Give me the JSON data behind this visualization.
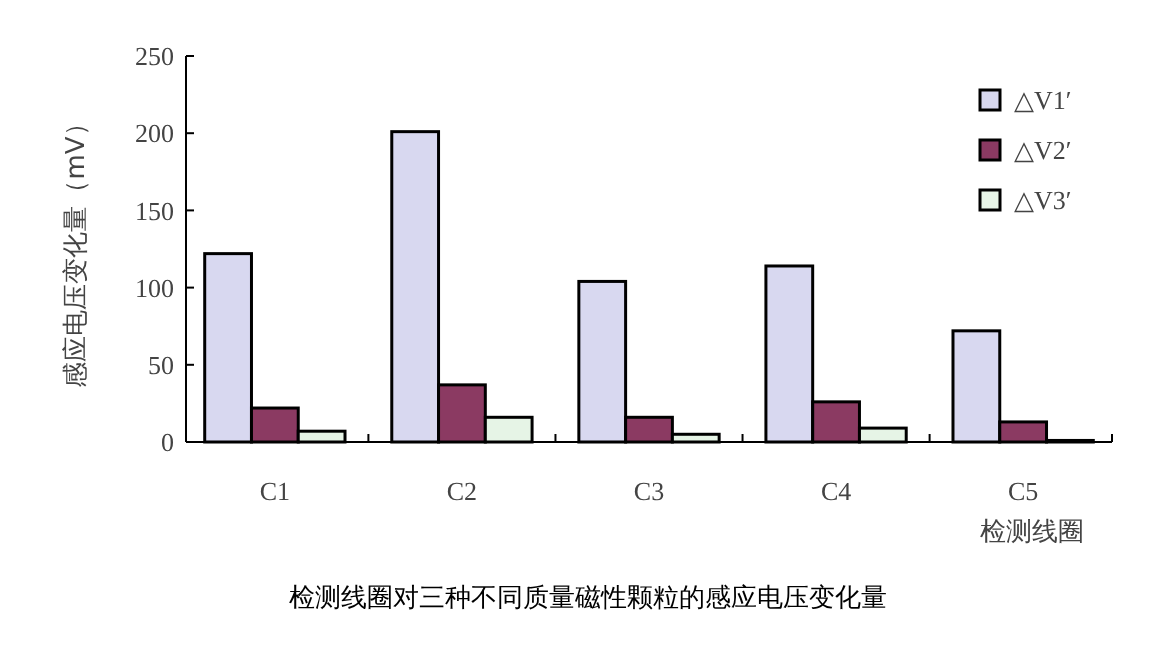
{
  "chart_data": {
    "type": "bar",
    "title": "检测线圈对三种不同质量磁性颗粒的感应电压变化量",
    "xlabel": "检测线圈",
    "ylabel": "感应电压变化量（mV）",
    "categories": [
      "C1",
      "C2",
      "C3",
      "C4",
      "C5"
    ],
    "series": [
      {
        "name": "△V1′",
        "color": "#d8d8f0",
        "values": [
          122,
          201,
          104,
          114,
          72
        ]
      },
      {
        "name": "△V2′",
        "color": "#8b3a62",
        "values": [
          22,
          37,
          16,
          26,
          13
        ]
      },
      {
        "name": "△V3′",
        "color": "#e6f4e6",
        "values": [
          7,
          16,
          5,
          9,
          1
        ]
      }
    ],
    "ylim": [
      0,
      250
    ],
    "yticks": [
      0,
      50,
      100,
      150,
      200,
      250
    ],
    "grid": false,
    "legend": "top right"
  }
}
